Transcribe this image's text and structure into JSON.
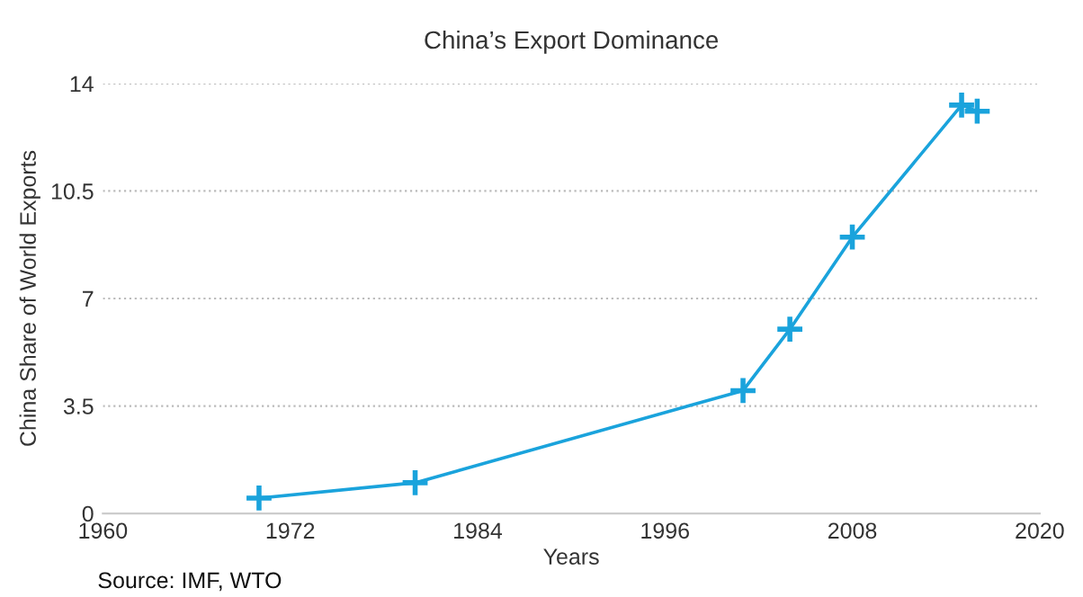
{
  "chart_data": {
    "type": "line",
    "title": "China’s Export Dominance",
    "xlabel": "Years",
    "ylabel": "China Share of World Exports",
    "annotations": [
      "Source: IMF, WTO"
    ],
    "x": [
      1970,
      1980,
      2001,
      2004,
      2008,
      2015,
      2016
    ],
    "series": [
      {
        "color": "#1aa3dc",
        "values": [
          0.5,
          1.0,
          4.0,
          6.0,
          9.0,
          13.3,
          13.1
        ]
      }
    ],
    "xlim": [
      1960,
      2020
    ],
    "xticks": [
      1960,
      1972,
      1984,
      1996,
      2008,
      2020
    ],
    "ylim": [
      0,
      14
    ],
    "yticks": [
      0,
      3.5,
      7,
      10.5,
      14
    ],
    "grid": "y",
    "marker": "cross",
    "line_style": "solid",
    "legend": false
  }
}
